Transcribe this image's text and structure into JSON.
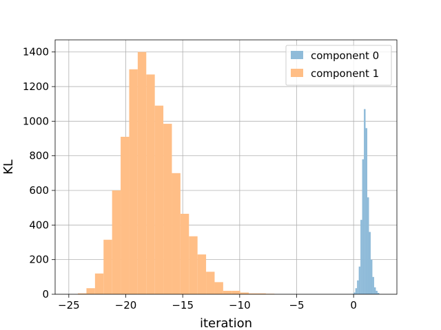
{
  "chart_data": {
    "type": "histogram",
    "xlabel": "iteration",
    "ylabel": "KL",
    "xlim": [
      -26.2,
      3.8
    ],
    "ylim": [
      0,
      1470
    ],
    "xticks": [
      -25,
      -20,
      -15,
      -10,
      -5,
      0
    ],
    "yticks": [
      0,
      200,
      400,
      600,
      800,
      1000,
      1200,
      1400
    ],
    "grid": true,
    "legend": "top-right",
    "series": [
      {
        "name": "component 1",
        "color": "#ffbe86",
        "bins": [
          {
            "x0": -24.2,
            "x1": -23.45,
            "value": 5
          },
          {
            "x0": -23.45,
            "x1": -22.7,
            "value": 35
          },
          {
            "x0": -22.7,
            "x1": -21.95,
            "value": 120
          },
          {
            "x0": -21.95,
            "x1": -21.2,
            "value": 315
          },
          {
            "x0": -21.2,
            "x1": -20.45,
            "value": 600
          },
          {
            "x0": -20.45,
            "x1": -19.7,
            "value": 910
          },
          {
            "x0": -19.7,
            "x1": -18.95,
            "value": 1300
          },
          {
            "x0": -18.95,
            "x1": -18.2,
            "value": 1400
          },
          {
            "x0": -18.2,
            "x1": -17.45,
            "value": 1270
          },
          {
            "x0": -17.45,
            "x1": -16.7,
            "value": 1090
          },
          {
            "x0": -16.7,
            "x1": -15.95,
            "value": 985
          },
          {
            "x0": -15.95,
            "x1": -15.2,
            "value": 700
          },
          {
            "x0": -15.2,
            "x1": -14.45,
            "value": 465
          },
          {
            "x0": -14.45,
            "x1": -13.7,
            "value": 335
          },
          {
            "x0": -13.7,
            "x1": -12.95,
            "value": 230
          },
          {
            "x0": -12.95,
            "x1": -12.2,
            "value": 130
          },
          {
            "x0": -12.2,
            "x1": -11.45,
            "value": 70
          },
          {
            "x0": -11.45,
            "x1": -10.7,
            "value": 20
          },
          {
            "x0": -10.7,
            "x1": -9.95,
            "value": 20
          },
          {
            "x0": -9.95,
            "x1": -9.2,
            "value": 10
          },
          {
            "x0": -9.2,
            "x1": -8.45,
            "value": 5
          },
          {
            "x0": -8.45,
            "x1": -7.7,
            "value": 5
          },
          {
            "x0": -7.7,
            "x1": -6.95,
            "value": 3
          }
        ]
      },
      {
        "name": "component 0",
        "color": "#8fbbd9",
        "bins": [
          {
            "x0": 0.0,
            "x1": 0.15,
            "value": 10
          },
          {
            "x0": 0.15,
            "x1": 0.3,
            "value": 35
          },
          {
            "x0": 0.3,
            "x1": 0.45,
            "value": 80
          },
          {
            "x0": 0.45,
            "x1": 0.6,
            "value": 160
          },
          {
            "x0": 0.6,
            "x1": 0.75,
            "value": 430
          },
          {
            "x0": 0.75,
            "x1": 0.9,
            "value": 780
          },
          {
            "x0": 0.9,
            "x1": 1.05,
            "value": 1070
          },
          {
            "x0": 1.05,
            "x1": 1.2,
            "value": 960
          },
          {
            "x0": 1.2,
            "x1": 1.35,
            "value": 560
          },
          {
            "x0": 1.35,
            "x1": 1.5,
            "value": 360
          },
          {
            "x0": 1.5,
            "x1": 1.65,
            "value": 200
          },
          {
            "x0": 1.65,
            "x1": 1.8,
            "value": 100
          },
          {
            "x0": 1.8,
            "x1": 1.95,
            "value": 40
          },
          {
            "x0": 1.95,
            "x1": 2.1,
            "value": 20
          },
          {
            "x0": 2.1,
            "x1": 2.25,
            "value": 8
          }
        ]
      }
    ],
    "legend_entries": [
      {
        "label": "component 0",
        "color": "#8fbbd9"
      },
      {
        "label": "component 1",
        "color": "#ffbe86"
      }
    ]
  }
}
